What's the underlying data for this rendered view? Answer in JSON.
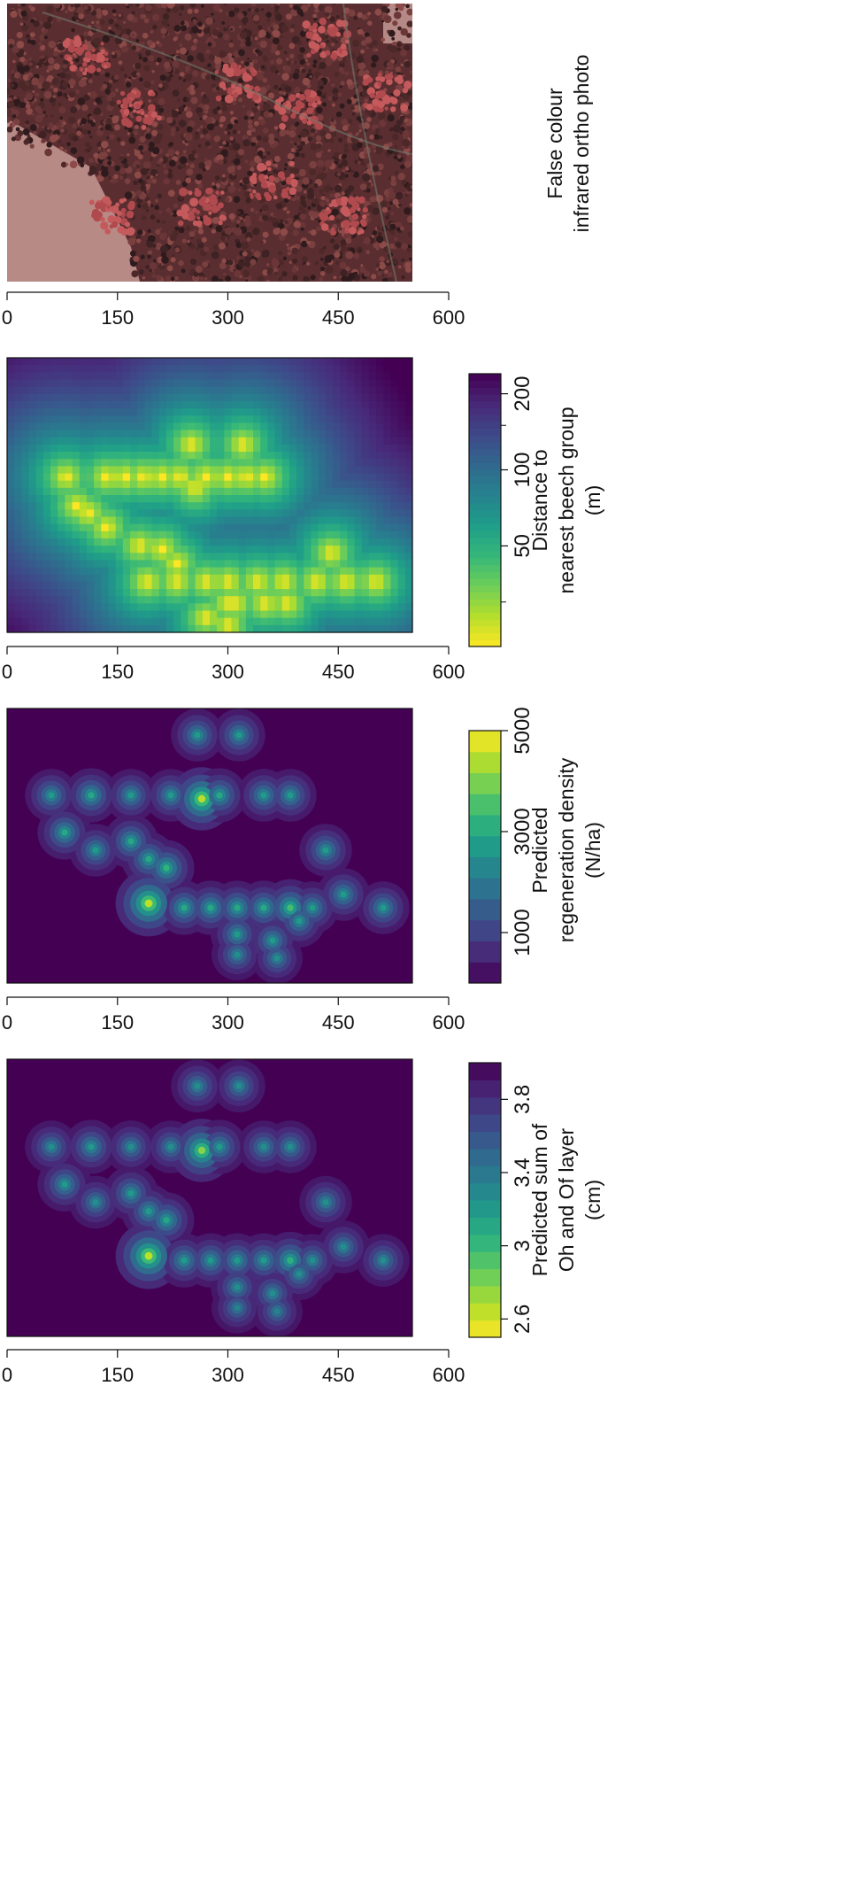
{
  "chart_data": [
    {
      "type": "image",
      "panel": 1,
      "title": "False colour infrared ortho photo",
      "title_lines": [
        "False colour",
        "infrared ortho photo"
      ],
      "axis_ticks": [
        "0",
        "150",
        "300",
        "450",
        "600"
      ],
      "axis_range": [
        0,
        600
      ],
      "image_extent": [
        0,
        550
      ]
    },
    {
      "type": "heatmap",
      "panel": 2,
      "palette": "viridis",
      "axis_ticks": [
        "0",
        "150",
        "300",
        "450",
        "600"
      ],
      "axis_range": [
        0,
        600
      ],
      "image_extent": [
        0,
        550
      ],
      "colorbar": {
        "label_lines": [
          "Distance to",
          "nearest beech group",
          "(m)"
        ],
        "ticks": [
          "50",
          "100",
          "200"
        ],
        "tick_values": [
          50,
          100,
          200
        ],
        "range": [
          20,
          240
        ],
        "scale": "log",
        "reversed": true
      },
      "beech_groups": [
        [
          80,
          215
        ],
        [
          110,
          165
        ],
        [
          135,
          215
        ],
        [
          160,
          215
        ],
        [
          185,
          215
        ],
        [
          210,
          215
        ],
        [
          235,
          215
        ],
        [
          255,
          200
        ],
        [
          270,
          215
        ],
        [
          300,
          215
        ],
        [
          325,
          215
        ],
        [
          350,
          215
        ],
        [
          95,
          175
        ],
        [
          135,
          145
        ],
        [
          180,
          120
        ],
        [
          210,
          115
        ],
        [
          230,
          95
        ],
        [
          250,
          260
        ],
        [
          320,
          260
        ],
        [
          190,
          70
        ],
        [
          230,
          70
        ],
        [
          270,
          70
        ],
        [
          300,
          70
        ],
        [
          340,
          70
        ],
        [
          375,
          70
        ],
        [
          420,
          70
        ],
        [
          460,
          70
        ],
        [
          500,
          70
        ],
        [
          310,
          40
        ],
        [
          350,
          40
        ],
        [
          380,
          40
        ],
        [
          440,
          110
        ],
        [
          300,
          40
        ],
        [
          270,
          20
        ],
        [
          300,
          10
        ]
      ]
    },
    {
      "type": "heatmap",
      "panel": 3,
      "palette": "viridis",
      "axis_ticks": [
        "0",
        "150",
        "300",
        "450",
        "600"
      ],
      "axis_range": [
        0,
        600
      ],
      "image_extent": [
        0,
        550
      ],
      "colorbar": {
        "label_lines": [
          "Predicted",
          "regeneration density",
          "(N/ha)"
        ],
        "ticks": [
          "1000",
          "3000",
          "5000"
        ],
        "tick_values": [
          1000,
          3000,
          5000
        ],
        "range": [
          0,
          5000
        ],
        "levels": 12
      }
    },
    {
      "type": "heatmap",
      "panel": 4,
      "palette": "viridis",
      "axis_ticks": [
        "0",
        "150",
        "300",
        "450",
        "600"
      ],
      "axis_range": [
        0,
        600
      ],
      "image_extent": [
        0,
        550
      ],
      "colorbar": {
        "label_lines": [
          "Predicted sum of",
          "Oh and Of layer",
          "(cm)"
        ],
        "ticks": [
          "2.6",
          "3",
          "3.4",
          "3.8"
        ],
        "tick_values": [
          2.6,
          3,
          3.4,
          3.8
        ],
        "range": [
          2.5,
          4.0
        ],
        "levels": 16,
        "reversed": true
      }
    }
  ]
}
